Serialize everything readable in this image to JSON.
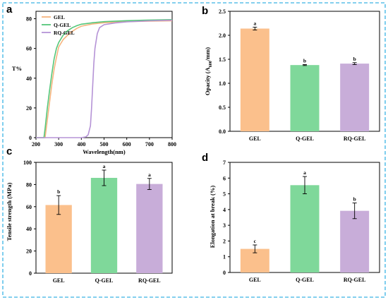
{
  "figure": {
    "frame_color": "#3ab4e4"
  },
  "chart_data": [
    {
      "panel": "a",
      "type": "line",
      "xlabel": "Wavelength(nm)",
      "ylabel": "T%",
      "xlim": [
        200,
        800
      ],
      "ylim": [
        0,
        85
      ],
      "x_ticks": [
        200,
        300,
        400,
        500,
        600,
        700,
        800
      ],
      "y_ticks": [
        0,
        20,
        40,
        60,
        80
      ],
      "legend_position": "top-left",
      "series": [
        {
          "name": "GEL",
          "color": "#f5b47e",
          "points": [
            [
              200,
              0
            ],
            [
              240,
              0
            ],
            [
              250,
              12
            ],
            [
              260,
              24
            ],
            [
              270,
              36
            ],
            [
              280,
              46
            ],
            [
              290,
              54
            ],
            [
              300,
              61
            ],
            [
              320,
              66
            ],
            [
              340,
              69
            ],
            [
              360,
              71.5
            ],
            [
              380,
              73.5
            ],
            [
              400,
              75
            ],
            [
              450,
              76.5
            ],
            [
              500,
              77.3
            ],
            [
              600,
              78
            ],
            [
              700,
              78.4
            ],
            [
              800,
              78.6
            ]
          ]
        },
        {
          "name": "Q-GEL",
          "color": "#55c77a",
          "points": [
            [
              200,
              0
            ],
            [
              235,
              0
            ],
            [
              240,
              6
            ],
            [
              250,
              20
            ],
            [
              260,
              32
            ],
            [
              270,
              43
            ],
            [
              280,
              53
            ],
            [
              290,
              60
            ],
            [
              300,
              64
            ],
            [
              320,
              69
            ],
            [
              340,
              72
            ],
            [
              360,
              74
            ],
            [
              380,
              75.3
            ],
            [
              400,
              76.3
            ],
            [
              450,
              77.3
            ],
            [
              500,
              78
            ],
            [
              600,
              78.7
            ],
            [
              700,
              79.1
            ],
            [
              800,
              79.4
            ]
          ]
        },
        {
          "name": "RQ-GEL",
          "color": "#b593d6",
          "points": [
            [
              200,
              0
            ],
            [
              400,
              0
            ],
            [
              420,
              0.5
            ],
            [
              430,
              2
            ],
            [
              440,
              8
            ],
            [
              445,
              20
            ],
            [
              450,
              35
            ],
            [
              455,
              50
            ],
            [
              460,
              60
            ],
            [
              470,
              70
            ],
            [
              480,
              74
            ],
            [
              500,
              76
            ],
            [
              550,
              77.2
            ],
            [
              600,
              77.9
            ],
            [
              700,
              78.6
            ],
            [
              800,
              79
            ]
          ]
        }
      ]
    },
    {
      "panel": "b",
      "type": "bar",
      "ylabel_main": "Opacity (A",
      "ylabel_sub": "600",
      "ylabel_tail": "/mm)",
      "ylim": [
        0,
        2.5
      ],
      "y_ticks": [
        "0.0",
        "0.5",
        "1.0",
        "1.5",
        "2.0",
        "2.5"
      ],
      "categories": [
        "GEL",
        "Q-GEL",
        "RQ-GEL"
      ],
      "values": [
        2.14,
        1.38,
        1.41
      ],
      "errors": [
        0.03,
        0.01,
        0.02
      ],
      "letters": [
        "a",
        "b",
        "b"
      ],
      "colors": [
        "#fbc08c",
        "#7fd89a",
        "#c8add9"
      ]
    },
    {
      "panel": "c",
      "type": "bar",
      "ylabel": "Tensile strength (MPa)",
      "ylim": [
        0,
        100
      ],
      "y_ticks": [
        "0",
        "20",
        "40",
        "60",
        "80",
        "100"
      ],
      "categories": [
        "GEL",
        "Q-GEL",
        "RQ-GEL"
      ],
      "values": [
        61.5,
        86,
        80.5
      ],
      "errors": [
        8.5,
        7,
        5
      ],
      "letters": [
        "b",
        "a",
        "a"
      ],
      "colors": [
        "#fbc08c",
        "#7fd89a",
        "#c8add9"
      ]
    },
    {
      "panel": "d",
      "type": "bar",
      "ylabel": "Elongation at break (%)",
      "ylim": [
        0,
        7
      ],
      "y_ticks": [
        "0",
        "1",
        "2",
        "3",
        "4",
        "5",
        "6",
        "7"
      ],
      "categories": [
        "GEL",
        "Q-GEL",
        "RQ-GEL"
      ],
      "values": [
        1.5,
        5.55,
        3.92
      ],
      "errors": [
        0.25,
        0.55,
        0.5
      ],
      "letters": [
        "c",
        "a",
        "b"
      ],
      "colors": [
        "#fbc08c",
        "#7fd89a",
        "#c8add9"
      ]
    }
  ]
}
